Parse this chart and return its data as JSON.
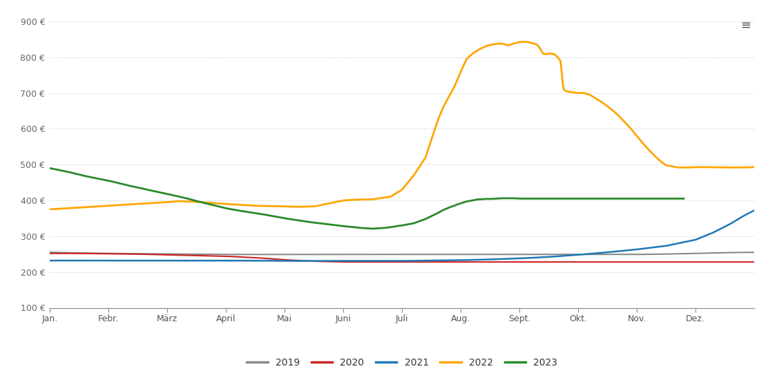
{
  "background_color": "#ffffff",
  "plot_bg_color": "#ffffff",
  "grid_color": "#cccccc",
  "months": [
    "Jan.",
    "Febr.",
    "März",
    "April",
    "Mai",
    "Juni",
    "Juli",
    "Aug.",
    "Sept.",
    "Okt.",
    "Nov.",
    "Dez."
  ],
  "ylim": [
    100,
    930
  ],
  "yticks": [
    100,
    200,
    300,
    400,
    500,
    600,
    700,
    800,
    900
  ],
  "series_colors": {
    "2019": "#888888",
    "2020": "#cc2222",
    "2021": "#1f77b4",
    "2022": "#ffa500",
    "2023": "#2a8a2a"
  },
  "series_linewidths": {
    "2019": 1.5,
    "2020": 1.5,
    "2021": 1.8,
    "2022": 2.0,
    "2023": 2.0
  },
  "legend_order": [
    "2019",
    "2020",
    "2021",
    "2022",
    "2023"
  ],
  "menu_icon_color": "#555555"
}
